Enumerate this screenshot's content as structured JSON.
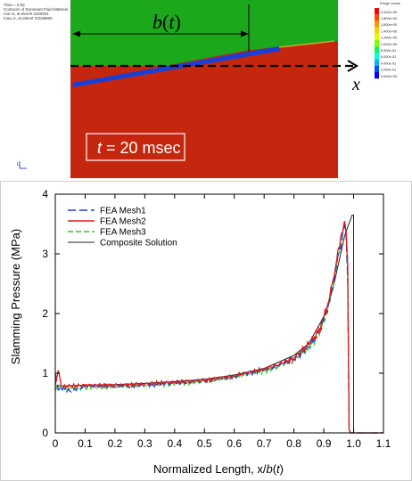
{
  "simulation": {
    "header_lines": [
      "Time =      0.02",
      "Contours of Dominant Fluid Material",
      "min=0, at elem# 3100001",
      "max=2, at elem# 10169800"
    ],
    "fringe_title": "Fringe Levels",
    "fringe_levels": [
      "2.000e+00",
      "1.800e+00",
      "1.600e+00",
      "1.400e+00",
      "1.200e+00",
      "1.000e+00",
      "8.000e-01",
      "6.000e-01",
      "4.000e-01",
      "2.000e-01",
      "0.000e+00"
    ],
    "fringe_colors": [
      "#ff0000",
      "#ff4a00",
      "#ff9600",
      "#ffd000",
      "#e0ff00",
      "#7cff00",
      "#00ff5a",
      "#00ffd0",
      "#00b4ff",
      "#0050ff",
      "#0000ff"
    ],
    "b_label_var": "b",
    "b_label_paren_open": "(",
    "b_label_t": "t",
    "b_label_paren_close": ")",
    "x_axis_label": "x",
    "time_box_t": "t",
    "time_box_rest": " = 20 msec",
    "triad_label": "L",
    "colors": {
      "air": "#1ba81b",
      "water": "#c5260e",
      "plate": "#1a3fd6"
    }
  },
  "chart_data": {
    "type": "line",
    "title": "",
    "ylabel": "Slamming Pressure (MPa)",
    "xlabel_prefix": "Normalized Length, x/",
    "xlabel_b": "b",
    "xlabel_paren_open": "(",
    "xlabel_t": "t",
    "xlabel_paren_close": ")",
    "xlim": [
      0,
      1.1
    ],
    "ylim": [
      0,
      4
    ],
    "xticks": [
      "0",
      "0.1",
      "0.2",
      "0.3",
      "0.4",
      "0.5",
      "0.6",
      "0.7",
      "0.8",
      "0.9",
      "1.0",
      "1.1"
    ],
    "yticks": [
      "0",
      "1",
      "2",
      "3",
      "4"
    ],
    "grid": false,
    "legend_position": "top-left",
    "series": [
      {
        "name": "FEA Mesh1",
        "color": "#1f3fd0",
        "dash": "9 4",
        "x": [
          0,
          0.01,
          0.02,
          0.05,
          0.1,
          0.2,
          0.3,
          0.4,
          0.5,
          0.6,
          0.7,
          0.75,
          0.8,
          0.85,
          0.88,
          0.9,
          0.92,
          0.94,
          0.95,
          0.96,
          0.965,
          0.97,
          0.975,
          0.98,
          0.985,
          0.99,
          1.1
        ],
        "y": [
          1.0,
          0.72,
          0.76,
          0.7,
          0.78,
          0.78,
          0.8,
          0.83,
          0.87,
          0.95,
          1.05,
          1.13,
          1.24,
          1.45,
          1.65,
          1.88,
          2.22,
          2.75,
          3.05,
          3.2,
          3.35,
          3.45,
          3.3,
          2.6,
          0.05,
          0.0,
          0.0
        ]
      },
      {
        "name": "FEA Mesh2",
        "color": "#e01a1a",
        "dash": "",
        "x": [
          0,
          0.01,
          0.02,
          0.05,
          0.1,
          0.2,
          0.3,
          0.4,
          0.5,
          0.6,
          0.7,
          0.75,
          0.8,
          0.85,
          0.88,
          0.9,
          0.92,
          0.94,
          0.95,
          0.96,
          0.97,
          0.975,
          0.98,
          0.985,
          0.99,
          1.1
        ],
        "y": [
          0.8,
          1.05,
          0.78,
          0.78,
          0.8,
          0.8,
          0.82,
          0.85,
          0.88,
          0.96,
          1.07,
          1.15,
          1.26,
          1.48,
          1.68,
          1.92,
          2.28,
          2.8,
          3.1,
          3.35,
          3.55,
          3.35,
          2.8,
          0.05,
          0.0,
          0.0
        ]
      },
      {
        "name": "FEA Mesh3",
        "color": "#2ecc2e",
        "dash": "6 3",
        "x": [
          0,
          0.01,
          0.02,
          0.05,
          0.1,
          0.2,
          0.3,
          0.4,
          0.5,
          0.6,
          0.7,
          0.75,
          0.8,
          0.85,
          0.88,
          0.9,
          0.92,
          0.94,
          0.95,
          0.96,
          0.965,
          0.97,
          0.975,
          0.98,
          0.985,
          0.99,
          1.1
        ],
        "y": [
          0.7,
          0.8,
          0.74,
          0.74,
          0.76,
          0.77,
          0.79,
          0.82,
          0.86,
          0.93,
          1.03,
          1.11,
          1.22,
          1.42,
          1.62,
          1.85,
          2.2,
          2.7,
          3.0,
          3.2,
          3.4,
          3.5,
          3.3,
          2.9,
          0.05,
          0.0,
          0.0
        ]
      },
      {
        "name": "Composite Solution",
        "color": "#222222",
        "dash": "",
        "x": [
          0,
          0.1,
          0.2,
          0.3,
          0.4,
          0.5,
          0.6,
          0.7,
          0.8,
          0.85,
          0.9,
          0.93,
          0.95,
          0.97,
          0.98,
          0.99,
          0.995,
          1.0,
          1.0,
          1.1
        ],
        "y": [
          0.78,
          0.8,
          0.81,
          0.83,
          0.86,
          0.9,
          0.97,
          1.08,
          1.3,
          1.5,
          1.95,
          2.4,
          2.85,
          3.3,
          3.45,
          3.58,
          3.65,
          3.65,
          0.0,
          0.0
        ]
      }
    ]
  }
}
